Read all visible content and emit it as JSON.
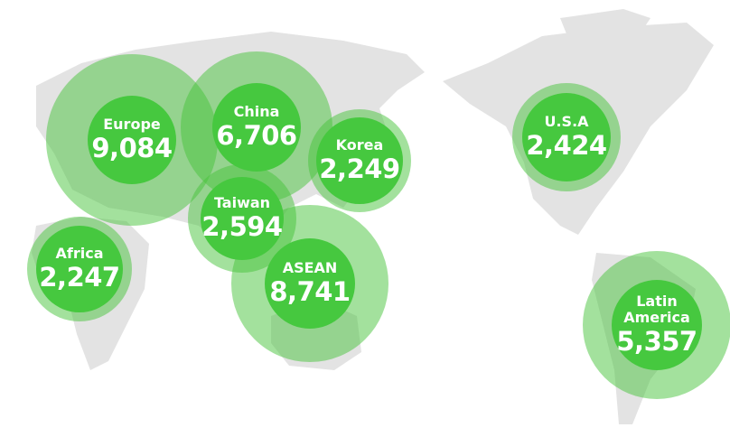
{
  "colors": {
    "map": "#e3e3e3",
    "halo": "rgba(72,196,60,0.5)",
    "core": "#46c83f",
    "text": "#ffffff"
  },
  "regions": [
    {
      "id": "europe",
      "label": "Europe",
      "value": "9,084"
    },
    {
      "id": "china",
      "label": "China",
      "value": "6,706"
    },
    {
      "id": "korea",
      "label": "Korea",
      "value": "2,249"
    },
    {
      "id": "taiwan",
      "label": "Taiwan",
      "value": "2,594"
    },
    {
      "id": "asean",
      "label": "ASEAN",
      "value": "8,741"
    },
    {
      "id": "africa",
      "label": "Africa",
      "value": "2,247"
    },
    {
      "id": "usa",
      "label": "U.S.A",
      "value": "2,424"
    },
    {
      "id": "latin-america",
      "label": "Latin America",
      "value": "5,357"
    }
  ]
}
